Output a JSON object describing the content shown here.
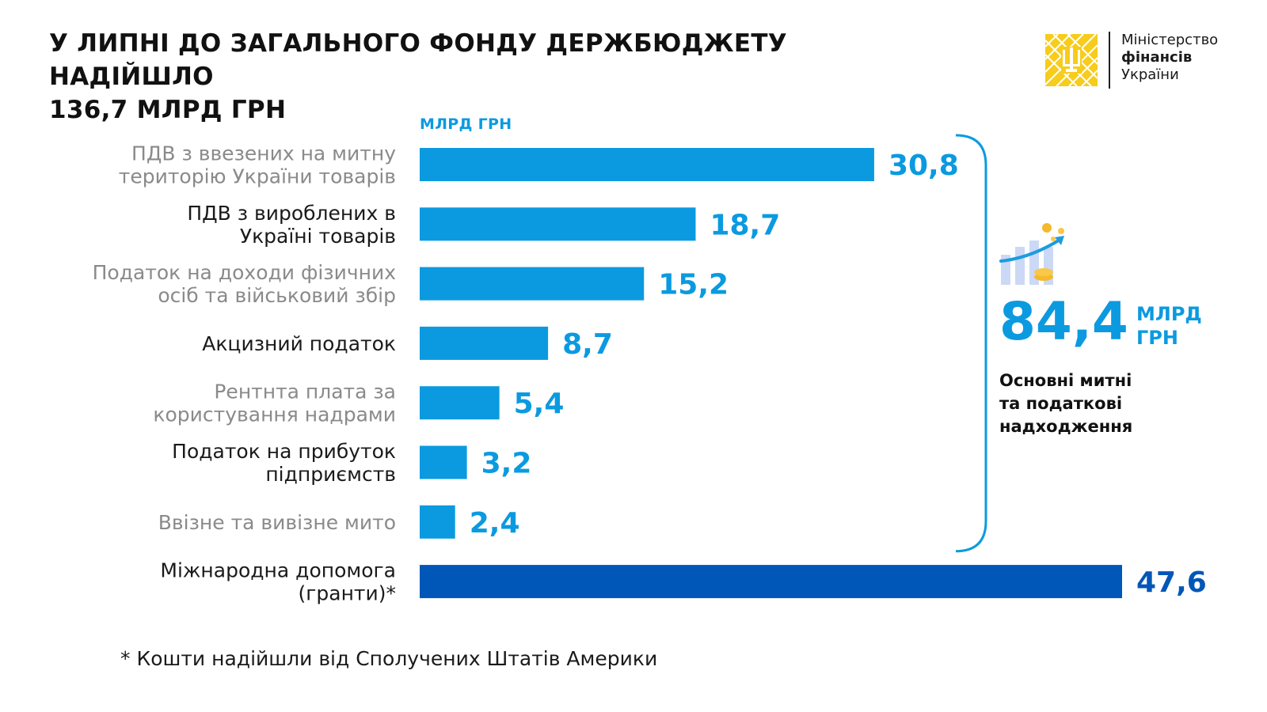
{
  "header": {
    "title_line1": "У ЛИПНІ ДО ЗАГАЛЬНОГО ФОНДУ ДЕРЖБЮДЖЕТУ НАДІЙШЛО",
    "title_line2": "136,7 МЛРД ГРН"
  },
  "logo": {
    "line1": "Міністерство",
    "line2": "фінансів",
    "line3": "України"
  },
  "summary": {
    "value": "84,4",
    "unit": "МЛРД ГРН",
    "caption_line1": "Основні митні",
    "caption_line2": "та податкові",
    "caption_line3": "надходження"
  },
  "footnote": "* Кошти надійшли від Сполучених Штатів Америки",
  "colors": {
    "bar_primary": "#0b9ae0",
    "bar_highlight": "#0057b8",
    "logo_yellow": "#f7cc1a",
    "label_dark": "#1a1a1a",
    "label_gray": "#8a8a8a"
  },
  "chart_data": {
    "type": "bar",
    "orientation": "horizontal",
    "unit_label": "МЛРД ГРН",
    "categories": [
      [
        "ПДВ з ввезених на митну",
        "територію України товарів"
      ],
      [
        "ПДВ з вироблених в",
        "Україні товарів"
      ],
      [
        "Податок на доходи фізичних",
        "осіб та військовий збір"
      ],
      [
        "Акцизний податок"
      ],
      [
        "Рентнта плата за",
        "користування надрами"
      ],
      [
        "Податок на прибуток",
        "підприємств"
      ],
      [
        "Ввізне та вивізне мито"
      ],
      [
        "Міжнародна допомога",
        "(гранти)*"
      ]
    ],
    "values": [
      30.8,
      18.7,
      15.2,
      8.7,
      5.4,
      3.2,
      2.4,
      47.6
    ],
    "value_labels": [
      "30,8",
      "18,7",
      "15,2",
      "8,7",
      "5,4",
      "3,2",
      "2,4",
      "47,6"
    ],
    "label_tone": [
      "gray",
      "dark",
      "gray",
      "dark",
      "gray",
      "dark",
      "gray",
      "dark"
    ],
    "highlight": [
      false,
      false,
      false,
      false,
      false,
      false,
      false,
      true
    ],
    "xlim": [
      0,
      47.6
    ],
    "grid": false,
    "bracket_group": [
      0,
      6
    ]
  }
}
